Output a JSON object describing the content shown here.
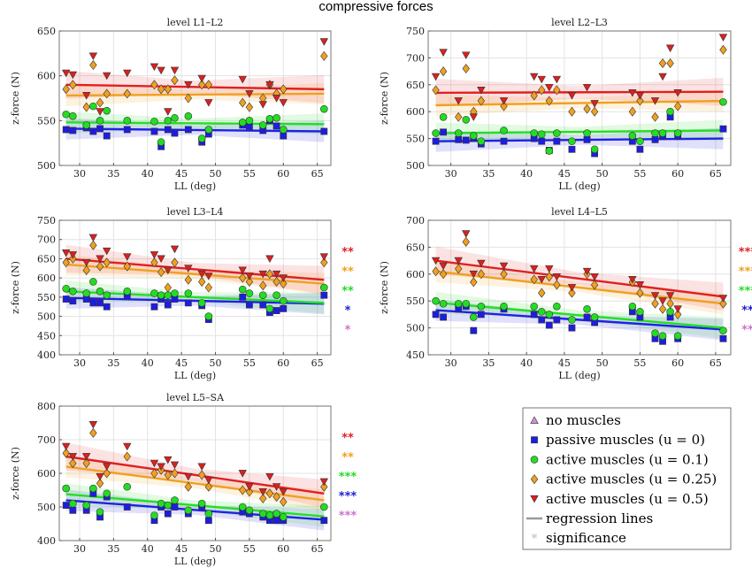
{
  "figure_title": "compressive forces",
  "legend": [
    {
      "label": "no muscles",
      "marker": "triangle-up",
      "color": "#d48fd6"
    },
    {
      "label": "passive muscles (u = 0)",
      "marker": "square",
      "color": "#1d1de0"
    },
    {
      "label": "active muscles (u = 0.1)",
      "marker": "circle",
      "color": "#22dd22"
    },
    {
      "label": "active muscles (u = 0.25)",
      "marker": "diamond",
      "color": "#f0a020"
    },
    {
      "label": "active muscles (u = 0.5)",
      "marker": "triangle-down",
      "color": "#dd1f1f"
    },
    {
      "label": "regression lines",
      "marker": "line",
      "color": "#999999"
    },
    {
      "label": "significance",
      "marker": "star",
      "color": "#bbbbbb"
    }
  ],
  "chart_data": [
    {
      "type": "scatter",
      "title": "level L1–L2",
      "xlabel": "LL (deg)",
      "ylabel": "z-force (N)",
      "xlim": [
        27,
        67
      ],
      "ylim": [
        500,
        650
      ],
      "xticks": [
        30,
        35,
        40,
        45,
        50,
        55,
        60,
        65
      ],
      "yticks": [
        500,
        550,
        600,
        650
      ],
      "grid": true,
      "x": [
        28,
        29,
        31,
        32,
        33,
        34,
        37,
        41,
        42,
        43,
        44,
        46,
        48,
        49,
        54,
        55,
        57,
        58,
        59,
        60,
        66
      ],
      "series": [
        {
          "name": "passive muscles (u = 0)",
          "values": [
            540,
            539,
            542,
            538,
            541,
            533,
            540,
            538,
            521,
            540,
            536,
            540,
            526,
            535,
            545,
            543,
            539,
            550,
            544,
            533,
            538
          ],
          "fit": [
            541,
            538
          ]
        },
        {
          "name": "active muscles (u = 0.1)",
          "values": [
            557,
            555,
            545,
            566,
            550,
            561,
            550,
            549,
            526,
            550,
            553,
            555,
            530,
            540,
            548,
            550,
            545,
            552,
            553,
            540,
            563
          ],
          "fit": [
            548,
            546
          ]
        },
        {
          "name": "active muscles (u = 0.25)",
          "values": [
            585,
            590,
            565,
            612,
            570,
            580,
            580,
            590,
            585,
            585,
            595,
            575,
            590,
            590,
            570,
            565,
            575,
            590,
            580,
            585,
            622
          ],
          "fit": [
            578,
            580
          ]
        },
        {
          "name": "active muscles (u = 0.5)",
          "values": [
            603,
            601,
            578,
            622,
            560,
            600,
            603,
            610,
            606,
            560,
            606,
            590,
            597,
            570,
            596,
            580,
            568,
            590,
            575,
            570,
            638
          ],
          "fit": [
            590,
            585
          ]
        }
      ],
      "significance": []
    },
    {
      "type": "scatter",
      "title": "level L2–L3",
      "xlabel": "LL (deg)",
      "ylabel": "z-force (N)",
      "xlim": [
        27,
        67
      ],
      "ylim": [
        500,
        750
      ],
      "xticks": [
        30,
        35,
        40,
        45,
        50,
        55,
        60,
        65
      ],
      "yticks": [
        500,
        550,
        600,
        650,
        700,
        750
      ],
      "grid": true,
      "x": [
        28,
        29,
        31,
        32,
        33,
        34,
        37,
        41,
        42,
        43,
        44,
        46,
        48,
        49,
        54,
        55,
        57,
        58,
        59,
        60,
        66
      ],
      "series": [
        {
          "name": "passive muscles (u = 0)",
          "values": [
            545,
            562,
            548,
            547,
            550,
            540,
            545,
            550,
            545,
            528,
            545,
            530,
            548,
            522,
            545,
            530,
            548,
            555,
            590,
            555,
            568
          ],
          "fit": [
            545,
            550
          ]
        },
        {
          "name": "active muscles (u = 0.1)",
          "values": [
            560,
            590,
            560,
            585,
            555,
            545,
            565,
            560,
            558,
            527,
            560,
            545,
            560,
            530,
            555,
            545,
            560,
            560,
            600,
            560,
            618
          ],
          "fit": [
            560,
            565
          ]
        },
        {
          "name": "active muscles (u = 0.25)",
          "values": [
            640,
            675,
            590,
            680,
            600,
            620,
            610,
            630,
            640,
            620,
            640,
            600,
            605,
            600,
            600,
            620,
            590,
            690,
            690,
            610,
            715
          ],
          "fit": [
            612,
            620
          ]
        },
        {
          "name": "active muscles (u = 0.5)",
          "values": [
            665,
            710,
            620,
            705,
            590,
            640,
            620,
            665,
            660,
            645,
            660,
            630,
            645,
            615,
            635,
            630,
            620,
            665,
            718,
            635,
            738
          ],
          "fit": [
            635,
            637
          ]
        }
      ],
      "significance": []
    },
    {
      "type": "scatter",
      "title": "level L3–L4",
      "xlabel": "LL (deg)",
      "ylabel": "z-force (N)",
      "xlim": [
        27,
        67
      ],
      "ylim": [
        400,
        750
      ],
      "xticks": [
        30,
        35,
        40,
        45,
        50,
        55,
        60,
        65
      ],
      "yticks": [
        400,
        450,
        500,
        550,
        600,
        650,
        700,
        750
      ],
      "grid": true,
      "x": [
        28,
        29,
        31,
        32,
        33,
        34,
        37,
        41,
        42,
        43,
        44,
        46,
        48,
        49,
        54,
        55,
        57,
        58,
        59,
        60,
        66
      ],
      "series": [
        {
          "name": "passive muscles (u = 0)",
          "values": [
            545,
            540,
            545,
            535,
            535,
            525,
            555,
            525,
            545,
            530,
            545,
            535,
            528,
            492,
            550,
            530,
            530,
            510,
            515,
            520,
            555
          ],
          "fit": [
            548,
            533
          ]
        },
        {
          "name": "active muscles (u = 0.1)",
          "values": [
            572,
            565,
            560,
            590,
            565,
            555,
            565,
            560,
            555,
            555,
            560,
            560,
            535,
            500,
            570,
            560,
            555,
            520,
            555,
            540,
            575
          ],
          "fit": [
            565,
            535
          ]
        },
        {
          "name": "active muscles (u = 0.25)",
          "values": [
            640,
            650,
            620,
            685,
            630,
            640,
            630,
            640,
            615,
            575,
            640,
            595,
            590,
            575,
            600,
            590,
            580,
            610,
            590,
            585,
            640
          ],
          "fit": [
            635,
            585
          ]
        },
        {
          "name": "active muscles (u = 0.5)",
          "values": [
            665,
            660,
            640,
            705,
            650,
            670,
            655,
            660,
            650,
            620,
            675,
            625,
            610,
            605,
            620,
            605,
            610,
            650,
            610,
            600,
            655
          ],
          "fit": [
            650,
            595
          ]
        }
      ],
      "significance": [
        "**",
        "**",
        "**",
        "*",
        "*"
      ]
    },
    {
      "type": "scatter",
      "title": "level L4–L5",
      "xlabel": "LL (deg)",
      "ylabel": "z-force (N)",
      "xlim": [
        27,
        67
      ],
      "ylim": [
        450,
        700
      ],
      "xticks": [
        30,
        35,
        40,
        45,
        50,
        55,
        60,
        65
      ],
      "yticks": [
        450,
        500,
        550,
        600,
        650,
        700
      ],
      "grid": true,
      "x": [
        28,
        29,
        31,
        32,
        33,
        34,
        37,
        41,
        42,
        43,
        44,
        46,
        48,
        49,
        54,
        55,
        57,
        58,
        59,
        60,
        66
      ],
      "series": [
        {
          "name": "passive muscles (u = 0)",
          "values": [
            525,
            520,
            535,
            540,
            495,
            525,
            535,
            525,
            515,
            505,
            515,
            500,
            520,
            510,
            530,
            520,
            480,
            475,
            520,
            480,
            480
          ],
          "fit": [
            533,
            497
          ]
        },
        {
          "name": "active muscles (u = 0.1)",
          "values": [
            550,
            545,
            545,
            545,
            520,
            540,
            540,
            540,
            530,
            525,
            540,
            515,
            535,
            520,
            540,
            530,
            490,
            485,
            530,
            485,
            495
          ],
          "fit": [
            547,
            500
          ]
        },
        {
          "name": "active muscles (u = 0.25)",
          "values": [
            605,
            600,
            610,
            660,
            585,
            600,
            600,
            590,
            565,
            595,
            580,
            565,
            600,
            580,
            585,
            565,
            545,
            535,
            545,
            525,
            545
          ],
          "fit": [
            605,
            545
          ]
        },
        {
          "name": "active muscles (u = 0.5)",
          "values": [
            625,
            615,
            625,
            675,
            600,
            620,
            615,
            610,
            590,
            610,
            595,
            575,
            605,
            595,
            590,
            580,
            560,
            550,
            560,
            535,
            555
          ],
          "fit": [
            625,
            558
          ]
        }
      ],
      "significance": [
        "***",
        "***",
        "***",
        "**",
        "**"
      ]
    },
    {
      "type": "scatter",
      "title": "level L5–SA",
      "xlabel": "LL (deg)",
      "ylabel": "z-force (N)",
      "xlim": [
        27,
        67
      ],
      "ylim": [
        400,
        800
      ],
      "xticks": [
        30,
        35,
        40,
        45,
        50,
        55,
        60,
        65
      ],
      "yticks": [
        400,
        500,
        600,
        700,
        800
      ],
      "grid": true,
      "x": [
        28,
        29,
        31,
        32,
        33,
        34,
        37,
        41,
        42,
        43,
        44,
        46,
        48,
        49,
        54,
        55,
        57,
        58,
        59,
        60,
        66
      ],
      "series": [
        {
          "name": "passive muscles (u = 0)",
          "values": [
            505,
            490,
            490,
            540,
            470,
            530,
            500,
            460,
            500,
            480,
            500,
            480,
            500,
            460,
            485,
            480,
            470,
            460,
            460,
            460,
            460
          ],
          "fit": [
            520,
            462
          ]
        },
        {
          "name": "active muscles (u = 0.1)",
          "values": [
            555,
            510,
            505,
            555,
            485,
            540,
            560,
            475,
            510,
            505,
            520,
            490,
            510,
            480,
            500,
            490,
            480,
            475,
            480,
            470,
            500
          ],
          "fit": [
            538,
            472
          ]
        },
        {
          "name": "active muscles (u = 0.25)",
          "values": [
            660,
            630,
            630,
            720,
            570,
            600,
            650,
            600,
            610,
            595,
            600,
            560,
            595,
            560,
            550,
            545,
            525,
            540,
            530,
            515,
            560
          ],
          "fit": [
            620,
            520
          ]
        },
        {
          "name": "active muscles (u = 0.5)",
          "values": [
            680,
            650,
            650,
            745,
            590,
            620,
            680,
            630,
            620,
            640,
            625,
            590,
            620,
            580,
            600,
            560,
            545,
            590,
            560,
            545,
            575
          ],
          "fit": [
            650,
            540
          ]
        }
      ],
      "significance": [
        "**",
        "**",
        "***",
        "***",
        "***"
      ]
    }
  ]
}
